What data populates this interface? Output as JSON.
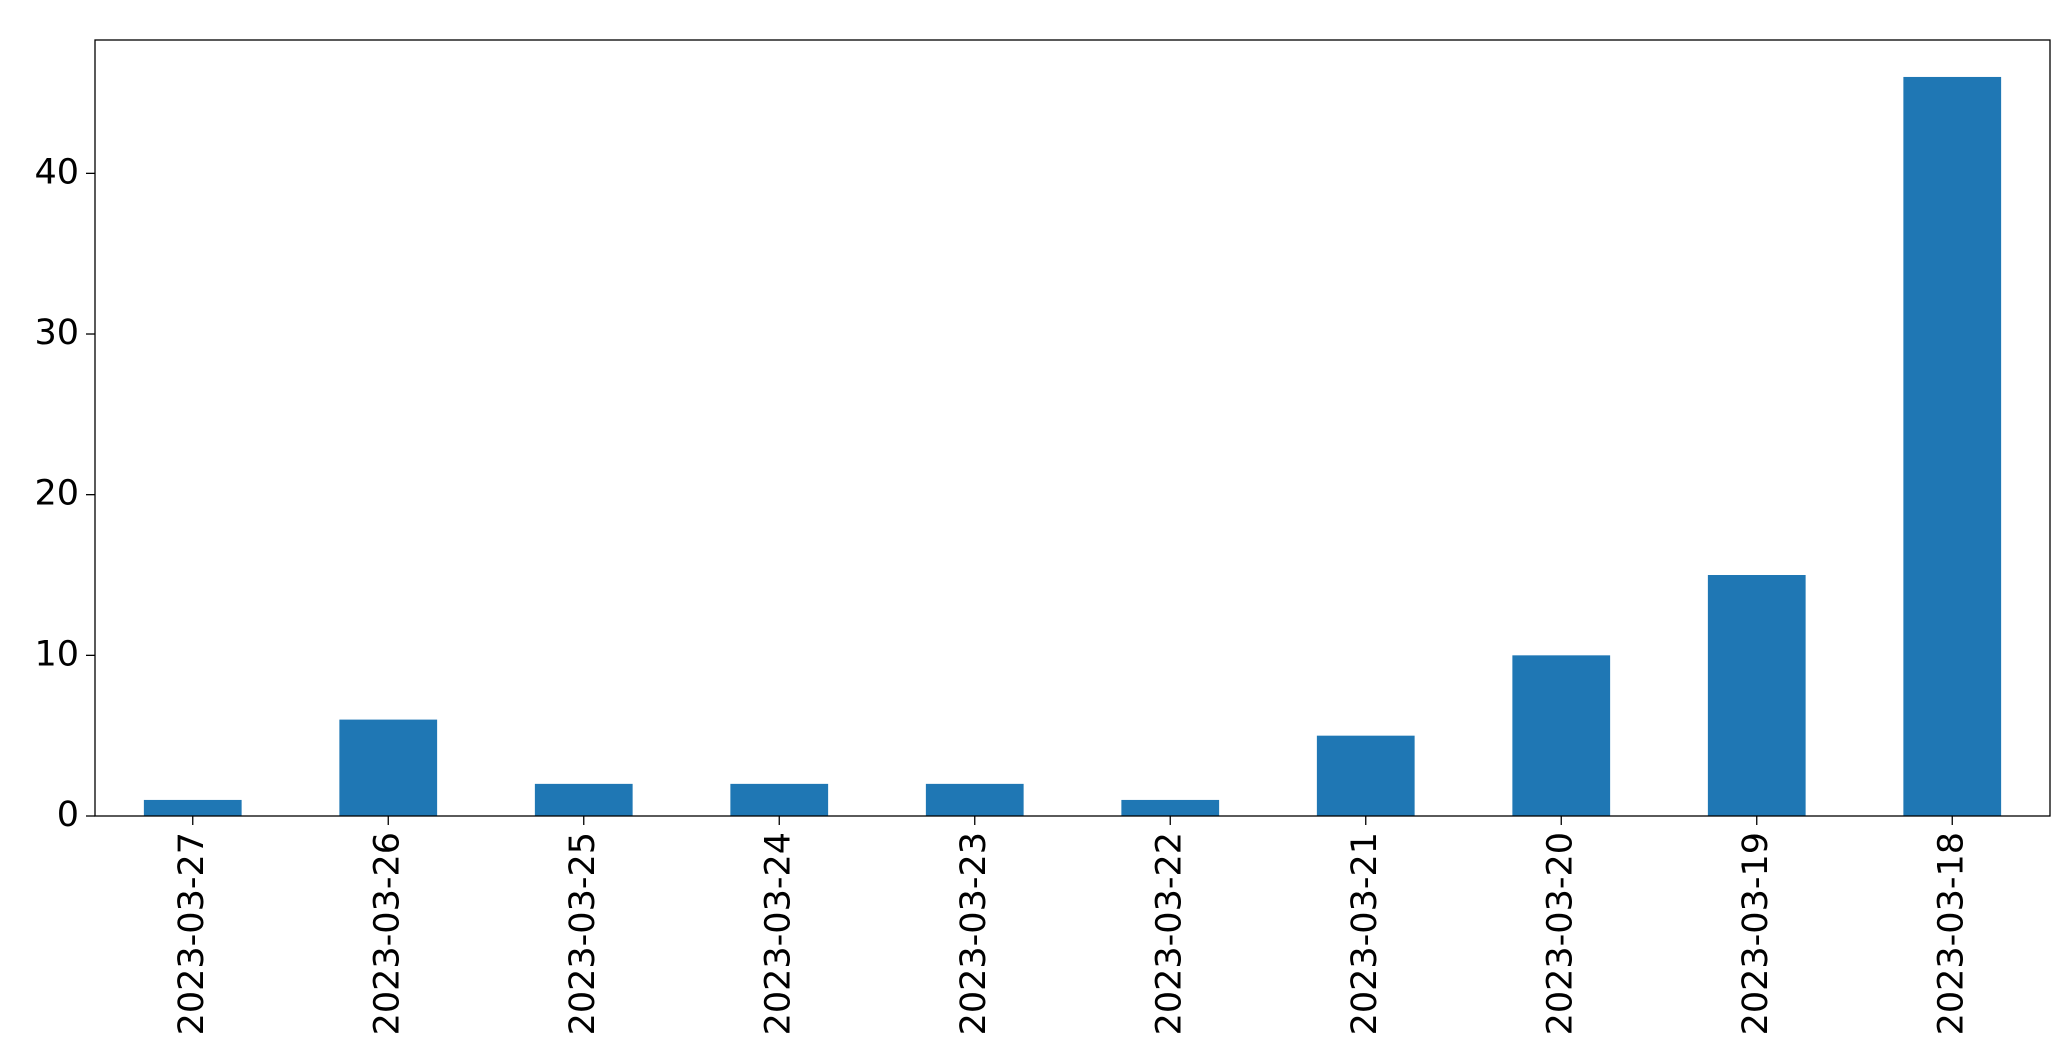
{
  "chart_data": {
    "type": "bar",
    "categories": [
      "2023-03-27",
      "2023-03-26",
      "2023-03-25",
      "2023-03-24",
      "2023-03-23",
      "2023-03-22",
      "2023-03-21",
      "2023-03-20",
      "2023-03-19",
      "2023-03-18"
    ],
    "values": [
      1,
      6,
      2,
      2,
      2,
      1,
      5,
      10,
      15,
      46
    ],
    "color": "#1f77b4",
    "ylim": [
      0,
      48.3
    ],
    "yticks": [
      0,
      10,
      20,
      30,
      40
    ],
    "grid": false
  }
}
